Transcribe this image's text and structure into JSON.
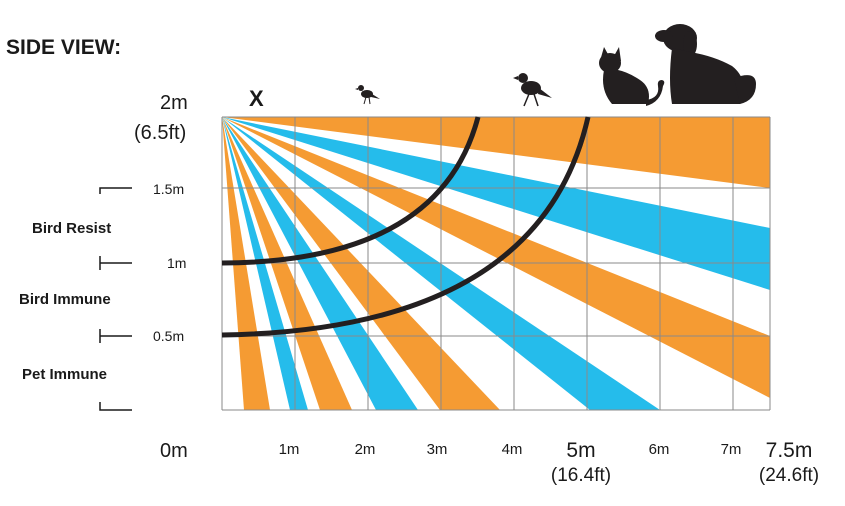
{
  "title": "SIDE VIEW:",
  "y_labels": {
    "top": "2m",
    "top_ft": "(6.5ft)",
    "m15": "1.5m",
    "m1": "1m",
    "m05": "0.5m",
    "zero": "0m"
  },
  "zones": {
    "bird_resist": "Bird Resist",
    "bird_immune": "Bird Immune",
    "pet_immune": "Pet Immune"
  },
  "x_labels": {
    "m1": "1m",
    "m2": "2m",
    "m3": "3m",
    "m4": "4m",
    "m5": "5m",
    "m5_ft": "(16.4ft)",
    "m6": "6m",
    "m7": "7m",
    "m75": "7.5m",
    "m75_ft": "(24.6ft)"
  },
  "sensor_marker": "X",
  "icons": [
    "bird-icon",
    "bird-large-icon",
    "cat-icon",
    "dog-icon"
  ],
  "colors": {
    "orange": "#F59B33",
    "blue": "#25BCEB",
    "grid": "#8a8a8a",
    "arc": "#231f20"
  }
}
